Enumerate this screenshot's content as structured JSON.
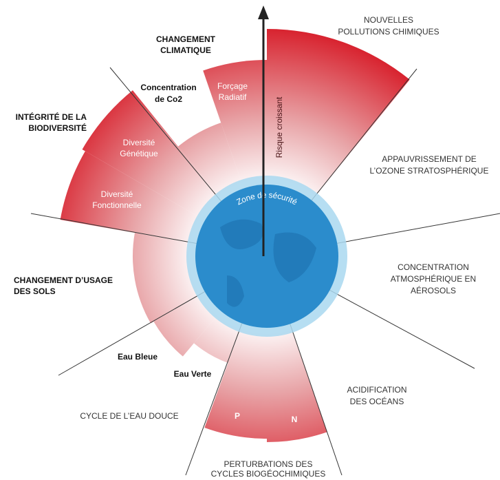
{
  "arrow_label": "Risque croissant",
  "safe_zone_label": "Zone de sécurité",
  "boundaries": [
    {
      "name": [
        "NOUVELLES",
        "POLLUTIONS CHIMIQUES"
      ]
    },
    {
      "name": [
        "APPAUVRISSEMENT DE",
        "L’OZONE STRATOSPHÉRIQUE"
      ]
    },
    {
      "name": [
        "CONCENTRATION",
        "ATMOSPHÉRIQUE EN",
        "AÉROSOLS"
      ]
    },
    {
      "name": [
        "ACIDIFICATION",
        "DES OCÉANS"
      ]
    },
    {
      "name": [
        "PERTURBATIONS DES",
        "CYCLES BIOGÉOCHIMIQUES"
      ],
      "parts": [
        "N",
        "P"
      ]
    },
    {
      "name": [
        "CYCLE DE L’EAU DOUCE"
      ],
      "parts": [
        "Eau Verte",
        "Eau Bleue"
      ]
    },
    {
      "name": [
        "CHANGEMENT D’USAGE",
        "DES SOLS"
      ]
    },
    {
      "name": [
        "INTÉGRITÉ DE LA",
        "BIODIVERSITÉ"
      ],
      "parts": [
        [
          "Diversité",
          "Fonctionnelle"
        ],
        [
          "Diversité",
          "Génétique"
        ]
      ]
    },
    {
      "name": [
        "CHANGEMENT",
        "CLIMATIQUE"
      ],
      "parts": [
        [
          "Concentration",
          "de Co2"
        ],
        [
          "Forçage",
          "Radiatif"
        ]
      ]
    }
  ]
}
